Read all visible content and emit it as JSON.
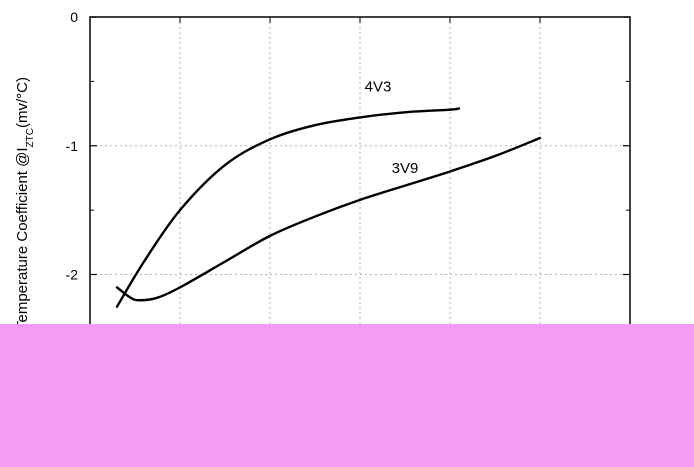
{
  "chart_data": {
    "type": "line",
    "ylabel": "Temperature Coefficient @I",
    "ylabel_sub": "ZTC",
    "ylabel_unit": "(mv/°C)",
    "ylim": [
      -2.4,
      0
    ],
    "yticks": [
      0,
      -1,
      -2
    ],
    "ytick_labels": [
      "0",
      "-1",
      "-2"
    ],
    "xlim": [
      0,
      6
    ],
    "xgrid": [
      1,
      2,
      3,
      4,
      5
    ],
    "grid": true,
    "series": [
      {
        "name": "4V3",
        "x": [
          0.3,
          0.6,
          1.0,
          1.5,
          2.0,
          2.5,
          3.0,
          3.5,
          4.0,
          4.1
        ],
        "y": [
          -2.25,
          -1.9,
          -1.5,
          -1.15,
          -0.95,
          -0.84,
          -0.78,
          -0.74,
          -0.72,
          -0.71
        ]
      },
      {
        "name": "3V9",
        "x": [
          0.3,
          0.45,
          0.55,
          0.75,
          1.0,
          1.5,
          2.0,
          2.5,
          3.0,
          3.5,
          4.0,
          4.5,
          5.0
        ],
        "y": [
          -2.1,
          -2.18,
          -2.2,
          -2.18,
          -2.1,
          -1.9,
          -1.7,
          -1.55,
          -1.42,
          -1.31,
          -1.2,
          -1.08,
          -0.94
        ]
      }
    ]
  },
  "colors": {
    "overlay": "#f59bf5",
    "line": "#000000",
    "grid": "#b3b3b3"
  }
}
